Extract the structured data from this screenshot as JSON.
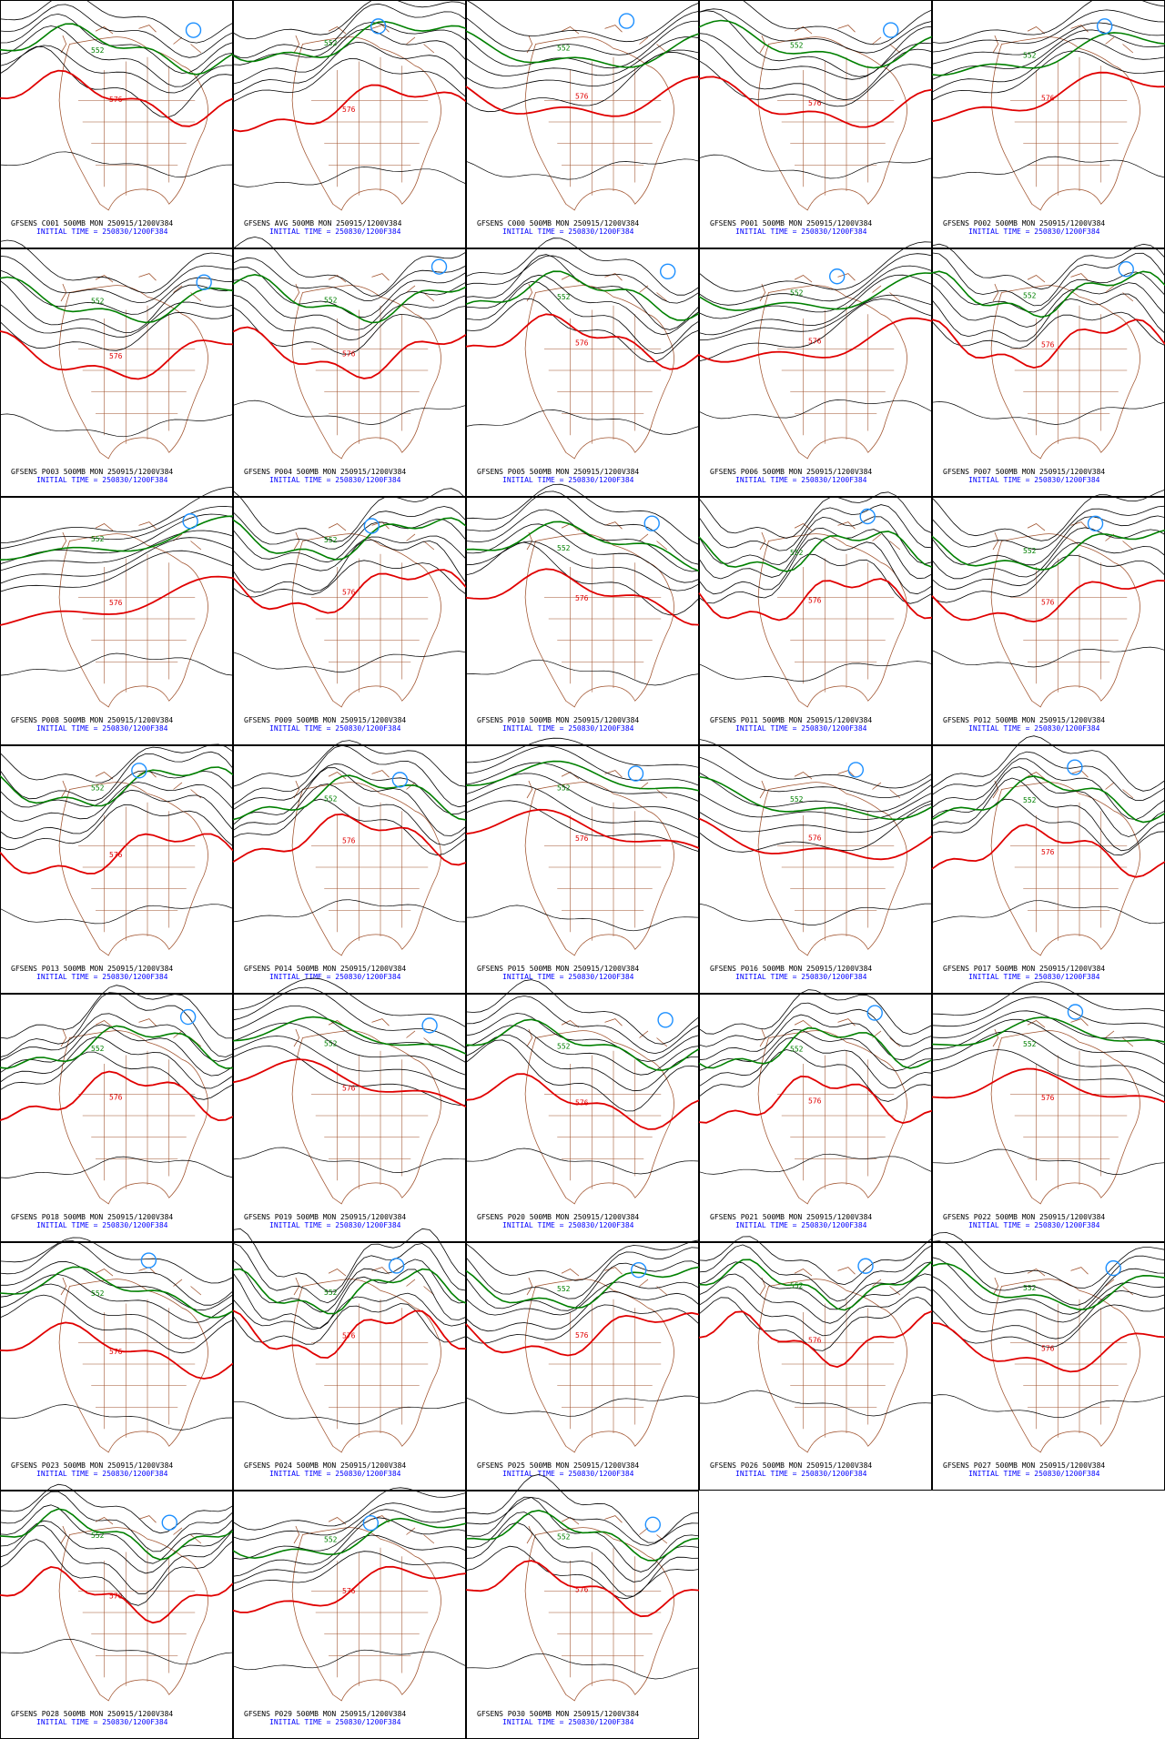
{
  "panels": [
    {
      "title": "GFSENS C001 500MB MON 250915/1200V384",
      "init_time": "INITIAL TIME = 250830/1200F384",
      "contours": [
        "552",
        "576"
      ]
    },
    {
      "title": "GFSENS AVG 500MB MON 250915/1200V384",
      "init_time": "INITIAL TIME = 250830/1200F384",
      "contours": [
        "552",
        "576"
      ]
    },
    {
      "title": "GFSENS C000 500MB MON 250915/1200V384",
      "init_time": "INITIAL TIME = 250830/1200F384",
      "contours": [
        "552",
        "576"
      ]
    },
    {
      "title": "GFSENS P001 500MB MON 250915/1200V384",
      "init_time": "INITIAL TIME = 250830/1200F384",
      "contours": [
        "552",
        "576"
      ]
    },
    {
      "title": "GFSENS P002 500MB MON 250915/1200V384",
      "init_time": "INITIAL TIME = 250830/1200F384",
      "contours": [
        "552",
        "576"
      ]
    },
    {
      "title": "GFSENS P003 500MB MON 250915/1200V384",
      "init_time": "INITIAL TIME = 250830/1200F384",
      "contours": [
        "552",
        "576"
      ]
    },
    {
      "title": "GFSENS P004 500MB MON 250915/1200V384",
      "init_time": "INITIAL TIME = 250830/1200F384",
      "contours": [
        "552",
        "576"
      ]
    },
    {
      "title": "GFSENS P005 500MB MON 250915/1200V384",
      "init_time": "INITIAL TIME = 250830/1200F384",
      "contours": [
        "552",
        "576"
      ]
    },
    {
      "title": "GFSENS P006 500MB MON 250915/1200V384",
      "init_time": "INITIAL TIME = 250830/1200F384",
      "contours": [
        "552",
        "576"
      ]
    },
    {
      "title": "GFSENS P007 500MB MON 250915/1200V384",
      "init_time": "INITIAL TIME = 250830/1200F384",
      "contours": [
        "552",
        "576"
      ]
    },
    {
      "title": "GFSENS P008 500MB MON 250915/1200V384",
      "init_time": "INITIAL TIME = 250830/1200F384",
      "contours": [
        "552",
        "576"
      ]
    },
    {
      "title": "GFSENS P009 500MB MON 250915/1200V384",
      "init_time": "INITIAL TIME = 250830/1200F384",
      "contours": [
        "552",
        "576"
      ]
    },
    {
      "title": "GFSENS P010 500MB MON 250915/1200V384",
      "init_time": "INITIAL TIME = 250830/1200F384",
      "contours": [
        "552",
        "576"
      ]
    },
    {
      "title": "GFSENS P011 500MB MON 250915/1200V384",
      "init_time": "INITIAL TIME = 250830/1200F384",
      "contours": [
        "552",
        "576"
      ]
    },
    {
      "title": "GFSENS P012 500MB MON 250915/1200V384",
      "init_time": "INITIAL TIME = 250830/1200F384",
      "contours": [
        "552",
        "576"
      ]
    },
    {
      "title": "GFSENS P013 500MB MON 250915/1200V384",
      "init_time": "INITIAL TIME = 250830/1200F384",
      "contours": [
        "552",
        "576"
      ]
    },
    {
      "title": "GFSENS P014 500MB MON 250915/1200V384",
      "init_time": "INITIAL TIME = 250830/1200F384",
      "contours": [
        "552",
        "576"
      ]
    },
    {
      "title": "GFSENS P015 500MB MON 250915/1200V384",
      "init_time": "INITIAL TIME = 250830/1200F384",
      "contours": [
        "552",
        "576"
      ]
    },
    {
      "title": "GFSENS P016 500MB MON 250915/1200V384",
      "init_time": "INITIAL TIME = 250830/1200F384",
      "contours": [
        "552",
        "576"
      ]
    },
    {
      "title": "GFSENS P017 500MB MON 250915/1200V384",
      "init_time": "INITIAL TIME = 250830/1200F384",
      "contours": [
        "552",
        "576"
      ]
    },
    {
      "title": "GFSENS P018 500MB MON 250915/1200V384",
      "init_time": "INITIAL TIME = 250830/1200F384",
      "contours": [
        "552",
        "576"
      ]
    },
    {
      "title": "GFSENS P019 500MB MON 250915/1200V384",
      "init_time": "INITIAL TIME = 250830/1200F384",
      "contours": [
        "552",
        "576"
      ]
    },
    {
      "title": "GFSENS P020 500MB MON 250915/1200V384",
      "init_time": "INITIAL TIME = 250830/1200F384",
      "contours": [
        "552",
        "576"
      ]
    },
    {
      "title": "GFSENS P021 500MB MON 250915/1200V384",
      "init_time": "INITIAL TIME = 250830/1200F384",
      "contours": [
        "552",
        "576"
      ]
    },
    {
      "title": "GFSENS P022 500MB MON 250915/1200V384",
      "init_time": "INITIAL TIME = 250830/1200F384",
      "contours": [
        "552",
        "576"
      ]
    },
    {
      "title": "GFSENS P023 500MB MON 250915/1200V384",
      "init_time": "INITIAL TIME = 250830/1200F384",
      "contours": [
        "552",
        "576"
      ]
    },
    {
      "title": "GFSENS P024 500MB MON 250915/1200V384",
      "init_time": "INITIAL TIME = 250830/1200F384",
      "contours": [
        "552",
        "576"
      ]
    },
    {
      "title": "GFSENS P025 500MB MON 250915/1200V384",
      "init_time": "INITIAL TIME = 250830/1200F384",
      "contours": [
        "552",
        "576"
      ]
    },
    {
      "title": "GFSENS P026 500MB MON 250915/1200V384",
      "init_time": "INITIAL TIME = 250830/1200F384",
      "contours": [
        "552",
        "576"
      ]
    },
    {
      "title": "GFSENS P027 500MB MON 250915/1200V384",
      "init_time": "INITIAL TIME = 250830/1200F384",
      "contours": [
        "552",
        "576"
      ]
    },
    {
      "title": "GFSENS P028 500MB MON 250915/1200V384",
      "init_time": "INITIAL TIME = 250830/1200F384",
      "contours": [
        "552",
        "576"
      ]
    },
    {
      "title": "GFSENS P029 500MB MON 250915/1200V384",
      "init_time": "INITIAL TIME = 250830/1200F384",
      "contours": [
        "552",
        "576"
      ]
    },
    {
      "title": "GFSENS P030 500MB MON 250915/1200V384",
      "init_time": "INITIAL TIME = 250830/1200F384",
      "contours": [
        "552",
        "576"
      ]
    }
  ]
}
